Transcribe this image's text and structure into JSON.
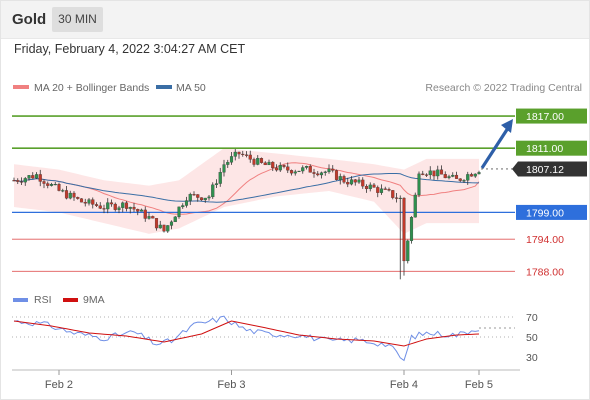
{
  "header": {
    "instrument": "Gold",
    "timeframe": "30 MIN"
  },
  "timestamp": "Friday, February 4, 2022 3:04:27 AM CET",
  "legend": {
    "ma20_label": "MA 20 + Bollinger Bands",
    "ma50_label": "MA 50",
    "credit": "Research © 2022 Trading Central",
    "rsi_label": "RSI",
    "ma9_label": "9MA"
  },
  "colors": {
    "candle_up": "#2f8f4e",
    "candle_down": "#c0392b",
    "ma20": "#f08080",
    "bollinger_fill": "#fde2e2",
    "ma50": "#3a6ea5",
    "resistance": "#5aa02c",
    "pivot": "#2e6fdc",
    "support": "#e05858",
    "last_price_tag": "#333333",
    "rsi": "#6f8fe6",
    "rsi_ma": "#d01010",
    "arrow": "#2e5fa8"
  },
  "chart_data": [
    {
      "type": "candlestick",
      "ylim": [
        1786,
        1820
      ],
      "last_price": 1807.12,
      "levels": [
        {
          "value": 1817.0,
          "label": "1817.00",
          "kind": "resistance"
        },
        {
          "value": 1811.0,
          "label": "1811.00",
          "kind": "resistance"
        },
        {
          "value": 1807.12,
          "label": "1807.12",
          "kind": "last"
        },
        {
          "value": 1799.0,
          "label": "1799.00",
          "kind": "pivot"
        },
        {
          "value": 1794.0,
          "label": "1794.00",
          "kind": "support"
        },
        {
          "value": 1788.0,
          "label": "1788.00",
          "kind": "support"
        }
      ],
      "x_ticks": [
        {
          "label": "Feb 2",
          "bar": 12
        },
        {
          "label": "Feb 3",
          "bar": 58
        },
        {
          "label": "Feb 4",
          "bar": 104
        },
        {
          "label": "Feb 5",
          "bar": 124
        }
      ],
      "n_bars": 125,
      "anchors": [
        [
          0,
          1805
        ],
        [
          6,
          1806
        ],
        [
          12,
          1803
        ],
        [
          18,
          1801
        ],
        [
          24,
          1800
        ],
        [
          30,
          1800.5
        ],
        [
          36,
          1798
        ],
        [
          40,
          1795.5
        ],
        [
          46,
          1802
        ],
        [
          52,
          1802
        ],
        [
          56,
          1808
        ],
        [
          60,
          1810
        ],
        [
          66,
          1808
        ],
        [
          72,
          1807
        ],
        [
          78,
          1807
        ],
        [
          84,
          1806.5
        ],
        [
          88,
          1805
        ],
        [
          94,
          1804
        ],
        [
          100,
          1802.5
        ],
        [
          103,
          1801.5
        ],
        [
          104,
          1790
        ],
        [
          107,
          1802
        ],
        [
          108,
          1807
        ],
        [
          114,
          1806
        ],
        [
          118,
          1805
        ],
        [
          124,
          1807.1
        ]
      ],
      "bollinger_upper_anchors": [
        [
          0,
          1808
        ],
        [
          12,
          1807
        ],
        [
          24,
          1805
        ],
        [
          36,
          1804
        ],
        [
          44,
          1805
        ],
        [
          56,
          1811
        ],
        [
          70,
          1810
        ],
        [
          84,
          1809
        ],
        [
          96,
          1808
        ],
        [
          104,
          1807
        ],
        [
          110,
          1809
        ],
        [
          124,
          1809
        ]
      ],
      "bollinger_lower_anchors": [
        [
          0,
          1800
        ],
        [
          12,
          1799
        ],
        [
          24,
          1797
        ],
        [
          36,
          1795
        ],
        [
          44,
          1796
        ],
        [
          56,
          1800
        ],
        [
          70,
          1802
        ],
        [
          84,
          1803
        ],
        [
          96,
          1801
        ],
        [
          104,
          1795
        ],
        [
          110,
          1797
        ],
        [
          124,
          1797
        ]
      ],
      "arrow": {
        "from_bar": 124,
        "from_value": 1807.12,
        "to_value": 1817.0
      }
    },
    {
      "type": "line",
      "title": "RSI",
      "ylim": [
        20,
        80
      ],
      "y_ticks": [
        70,
        50,
        30
      ],
      "series": [
        {
          "name": "RSI",
          "x": [
            0,
            8,
            16,
            24,
            32,
            38,
            42,
            48,
            56,
            62,
            68,
            76,
            84,
            92,
            100,
            104,
            106,
            110,
            118,
            124
          ],
          "values": [
            66,
            63,
            54,
            49,
            55,
            43,
            46,
            62,
            69,
            57,
            53,
            52,
            46,
            47,
            42,
            26,
            50,
            54,
            52,
            59
          ]
        },
        {
          "name": "9MA",
          "x": [
            0,
            10,
            20,
            30,
            40,
            50,
            58,
            66,
            76,
            86,
            96,
            104,
            110,
            118,
            124
          ],
          "values": [
            66,
            61,
            54,
            51,
            45,
            53,
            66,
            60,
            52,
            48,
            46,
            41,
            48,
            52,
            53
          ]
        }
      ]
    }
  ]
}
